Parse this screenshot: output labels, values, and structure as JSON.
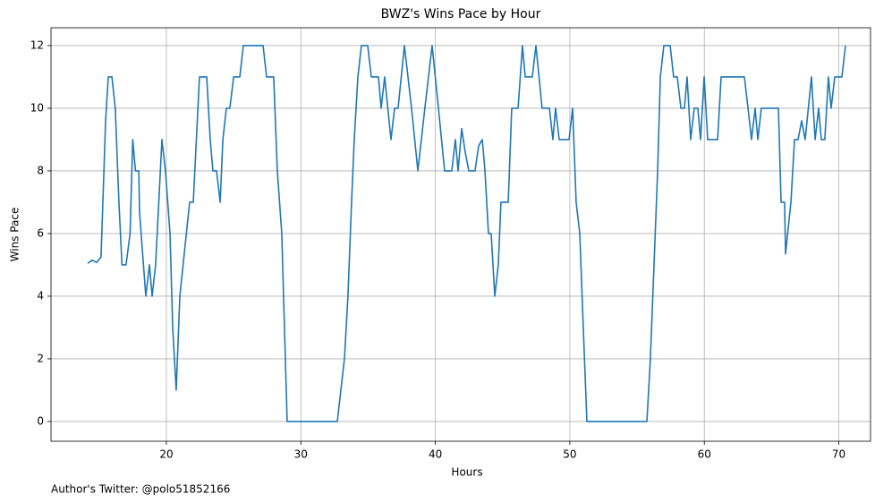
{
  "chart_data": {
    "type": "line",
    "title": "BWZ's Wins Pace by Hour",
    "x_label": "Hours",
    "y_label": "Wins Pace",
    "footnote": "Author's Twitter: @polo51852166",
    "x": [
      14.15,
      14.48,
      14.82,
      15.14,
      15.48,
      15.68,
      15.95,
      16.2,
      16.47,
      16.7,
      17.0,
      17.3,
      17.5,
      17.7,
      17.95,
      18.0,
      18.47,
      18.74,
      18.94,
      19.2,
      19.67,
      19.93,
      20.27,
      20.47,
      20.73,
      21.0,
      21.73,
      22.0,
      22.46,
      23.0,
      23.26,
      23.46,
      23.73,
      24.0,
      24.2,
      24.46,
      24.72,
      25.0,
      25.46,
      25.72,
      27.19,
      27.45,
      27.98,
      28.25,
      28.58,
      28.98,
      32.71,
      33.24,
      33.5,
      33.77,
      33.97,
      34.24,
      34.5,
      34.97,
      35.24,
      35.77,
      35.97,
      36.23,
      36.7,
      36.97,
      37.23,
      37.7,
      38.23,
      38.7,
      39.22,
      39.76,
      40.23,
      40.69,
      41.22,
      41.49,
      41.69,
      41.96,
      42.22,
      42.49,
      42.95,
      43.22,
      43.49,
      43.69,
      43.95,
      44.15,
      44.42,
      44.68,
      44.88,
      45.42,
      45.68,
      46.15,
      46.48,
      46.68,
      47.21,
      47.48,
      47.94,
      48.48,
      48.74,
      48.94,
      49.21,
      49.94,
      50.21,
      50.47,
      50.74,
      51.0,
      51.27,
      55.73,
      55.99,
      56.26,
      56.53,
      56.73,
      56.99,
      57.46,
      57.72,
      57.99,
      58.26,
      58.52,
      58.72,
      58.99,
      59.25,
      59.52,
      59.72,
      59.99,
      60.25,
      60.99,
      61.25,
      62.98,
      63.25,
      63.51,
      63.78,
      63.98,
      64.24,
      65.51,
      65.71,
      65.97,
      66.04,
      66.44,
      66.71,
      66.97,
      67.24,
      67.5,
      67.97,
      68.24,
      68.5,
      68.7,
      68.96,
      69.23,
      69.43,
      69.7,
      70.23,
      70.5
    ],
    "series": [
      {
        "name": "Wins Pace",
        "color": "#1f77b4",
        "values": [
          5.05,
          5.15,
          5.08,
          5.25,
          9.6,
          11,
          11,
          10,
          7,
          5,
          5,
          6,
          9,
          8,
          8,
          6.7,
          4,
          5,
          4,
          5,
          9,
          8,
          6,
          3,
          1,
          4,
          7,
          7,
          11,
          11,
          9,
          8,
          8,
          7,
          9,
          10,
          10,
          11,
          11,
          12,
          12,
          11,
          11,
          8,
          6,
          0,
          0,
          2,
          4,
          7,
          9,
          11,
          12,
          12,
          11,
          11,
          10,
          11,
          9,
          10,
          10,
          12,
          10,
          8,
          10,
          12,
          10,
          8,
          8,
          9,
          8,
          9.35,
          8.6,
          8,
          8,
          8.8,
          9,
          8,
          6,
          6,
          4,
          5,
          7,
          7,
          10,
          10,
          12,
          11,
          11,
          12,
          10,
          10,
          9,
          10,
          9,
          9,
          10,
          7,
          6,
          3,
          0,
          0,
          2,
          5,
          8,
          11,
          12,
          12,
          11,
          11,
          10,
          10,
          11,
          9,
          10,
          10,
          9,
          11,
          9,
          9,
          11,
          11,
          10,
          9,
          10,
          9,
          10,
          10,
          7,
          7,
          5.35,
          7,
          9,
          9,
          9.6,
          9,
          11,
          9,
          10,
          9,
          9,
          11,
          10,
          11,
          11,
          12
        ]
      }
    ],
    "xlim": [
      11.42,
      72.36
    ],
    "ylim": [
      -0.63,
      12.57
    ],
    "xticks": [
      20,
      30,
      40,
      50,
      60,
      70
    ],
    "yticks": [
      0,
      2,
      4,
      6,
      8,
      10,
      12
    ],
    "grid": true
  }
}
